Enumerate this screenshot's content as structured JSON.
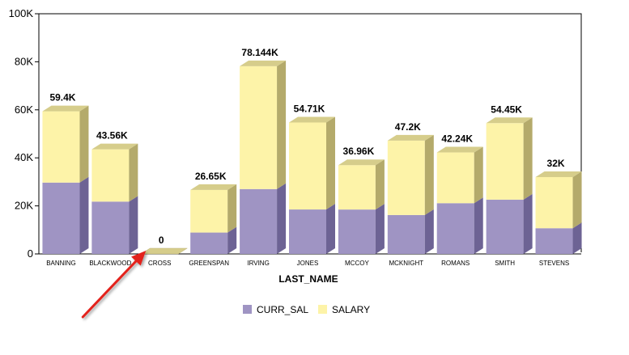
{
  "chart_data": {
    "type": "bar",
    "stacked": true,
    "three_d": true,
    "title": "",
    "xlabel": "LAST_NAME",
    "ylabel": "",
    "ylim": [
      0,
      100000
    ],
    "yticks": [
      0,
      20000,
      40000,
      60000,
      80000,
      100000
    ],
    "ytick_labels": [
      "0",
      "20K",
      "40K",
      "60K",
      "80K",
      "100K"
    ],
    "grid": false,
    "legend_position": "bottom",
    "categories": [
      "BANNING",
      "BLACKWOOD",
      "CROSS",
      "GREENSPAN",
      "IRVING",
      "JONES",
      "MCCOY",
      "MCKNIGHT",
      "ROMANS",
      "SMITH",
      "STEVENS"
    ],
    "series": [
      {
        "name": "CURR_SAL",
        "color": "#9f94c3",
        "side_color": "#6d6394",
        "top_color": "#c1b8de",
        "values": [
          29700,
          21780,
          0,
          8900,
          27000,
          18500,
          18480,
          16200,
          21120,
          22600,
          10700
        ]
      },
      {
        "name": "SALARY",
        "color": "#fdf3a8",
        "side_color": "#b4aa6b",
        "top_color": "#d6cd8b",
        "values": [
          29700,
          21780,
          0,
          17750,
          51144,
          36210,
          18480,
          31000,
          21120,
          31850,
          21300
        ]
      }
    ],
    "totals": [
      "59.4K",
      "43.56K",
      "0",
      "26.65K",
      "78.144K",
      "54.71K",
      "36.96K",
      "47.2K",
      "42.24K",
      "54.45K",
      "32K"
    ],
    "annotation": {
      "type": "arrow",
      "color": "#e3241c",
      "points_to": "CROSS"
    }
  }
}
